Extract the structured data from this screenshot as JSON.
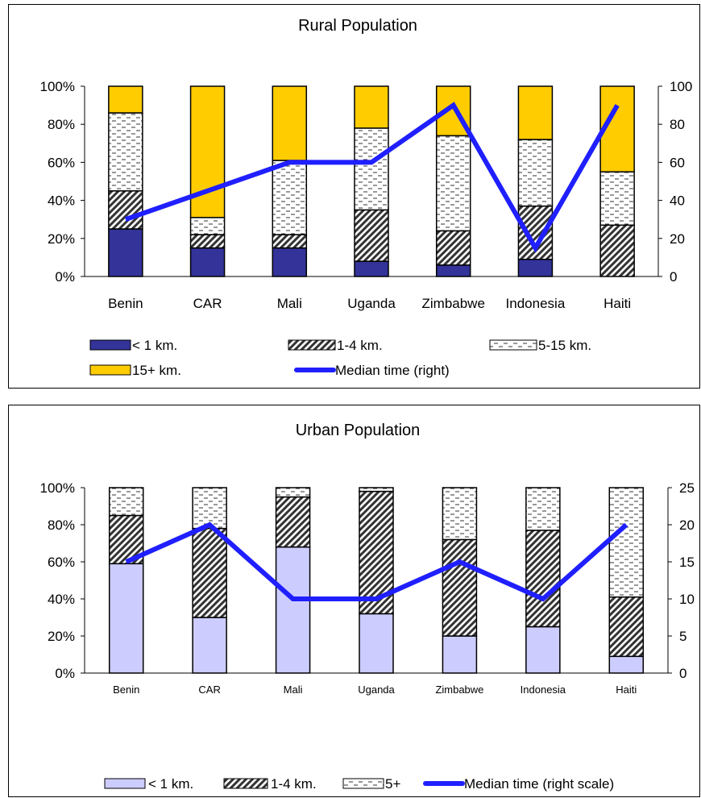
{
  "colors": {
    "lt1_dark": "#333399",
    "lt1_light": "#ccccff",
    "km1_4": "#333333",
    "km5_15": "#ffffff",
    "km15plus": "#ffcc00",
    "median_line": "#1f1fff",
    "frame": "#000000"
  },
  "chart_data": [
    {
      "type": "bar",
      "stacked": "percent",
      "title": "Rural Population",
      "categories": [
        "Benin",
        "CAR",
        "Mali",
        "Uganda",
        "Zimbabwe",
        "Indonesia",
        "Haiti"
      ],
      "y_ticks": [
        "0%",
        "20%",
        "40%",
        "60%",
        "80%",
        "100%"
      ],
      "ylim": [
        0,
        100
      ],
      "y2_ticks": [
        "0",
        "20",
        "40",
        "60",
        "80",
        "100"
      ],
      "y2lim": [
        0,
        100
      ],
      "series": [
        {
          "name": "< 1 km.",
          "key": "lt1",
          "values": [
            25,
            15,
            15,
            8,
            6,
            9,
            0
          ]
        },
        {
          "name": "1-4 km.",
          "key": "km1_4",
          "values": [
            20,
            7,
            7,
            27,
            18,
            28,
            27
          ]
        },
        {
          "name": "5-15 km.",
          "key": "km5_15",
          "values": [
            41,
            9,
            39,
            43,
            50,
            35,
            28
          ]
        },
        {
          "name": "15+ km.",
          "key": "km15plus",
          "values": [
            14,
            69,
            39,
            22,
            26,
            28,
            45
          ]
        }
      ],
      "line": {
        "name": "Median time (right)",
        "values": [
          30,
          45,
          60,
          60,
          90,
          15,
          90
        ]
      },
      "legend_position": "bottom"
    },
    {
      "type": "bar",
      "stacked": "percent",
      "title": "Urban Population",
      "categories": [
        "Benin",
        "CAR",
        "Mali",
        "Uganda",
        "Zimbabwe",
        "Indonesia",
        "Haiti"
      ],
      "y_ticks": [
        "0%",
        "20%",
        "40%",
        "60%",
        "80%",
        "100%"
      ],
      "ylim": [
        0,
        100
      ],
      "y2_ticks": [
        "0",
        "5",
        "10",
        "15",
        "20",
        "25"
      ],
      "y2lim": [
        0,
        25
      ],
      "series": [
        {
          "name": "< 1 km.",
          "key": "lt1",
          "values": [
            59,
            30,
            68,
            32,
            20,
            25,
            9
          ]
        },
        {
          "name": "1-4 km.",
          "key": "km1_4",
          "values": [
            26,
            48,
            27,
            66,
            52,
            52,
            32
          ]
        },
        {
          "name": "5+",
          "key": "km5_15",
          "values": [
            15,
            22,
            5,
            2,
            28,
            23,
            59
          ]
        }
      ],
      "line": {
        "name": "Median time (right scale)",
        "values": [
          15,
          20,
          10,
          10,
          15,
          10,
          20
        ]
      },
      "legend_position": "bottom"
    }
  ]
}
